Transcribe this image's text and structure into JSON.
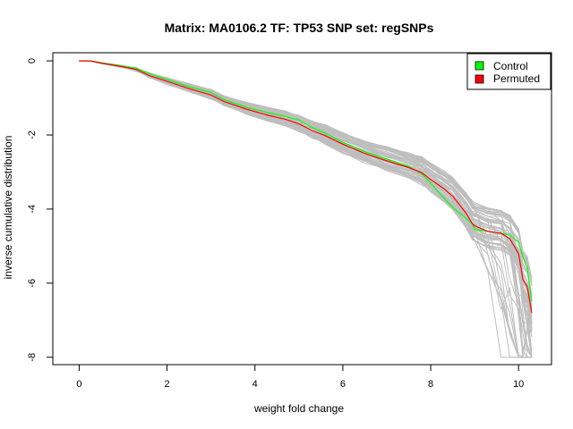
{
  "chart_data": {
    "type": "line",
    "title": "Matrix: MA0106.2 TF: TP53 SNP set: regSNPs",
    "xlabel": "weight fold change",
    "ylabel": "inverse cumulative distribution",
    "xlim": [
      -0.6,
      10.75
    ],
    "ylim": [
      -8.2,
      0.22
    ],
    "x_ticks": [
      0,
      2,
      4,
      6,
      8,
      10
    ],
    "y_ticks": [
      0,
      -2,
      -4,
      -6,
      -8
    ],
    "grid": false,
    "legend": {
      "position": "top-right",
      "entries": [
        {
          "label": "Control",
          "color": "#00ff00"
        },
        {
          "label": "Permuted",
          "color": "#ff0000"
        }
      ]
    },
    "colors": {
      "control": "#00ff00",
      "permuted": "#ff0000",
      "background_series": "#bebebe"
    },
    "series": [
      {
        "name": "Control",
        "color": "#00ff00",
        "x": [
          0,
          0.25,
          0.5,
          0.9,
          1.3,
          1.6,
          2.0,
          2.5,
          3.0,
          3.3,
          3.8,
          4.3,
          4.7,
          5.0,
          5.3,
          5.6,
          6.0,
          6.5,
          7.0,
          7.5,
          7.8,
          8.0,
          8.3,
          8.5,
          8.8,
          8.95,
          9.0,
          9.3,
          9.6,
          9.8,
          10.0,
          10.1,
          10.2,
          10.3
        ],
        "y": [
          0,
          0,
          -0.05,
          -0.12,
          -0.2,
          -0.35,
          -0.5,
          -0.7,
          -0.85,
          -1.05,
          -1.25,
          -1.4,
          -1.5,
          -1.6,
          -1.8,
          -1.95,
          -2.2,
          -2.45,
          -2.65,
          -2.85,
          -3.05,
          -3.3,
          -3.7,
          -3.95,
          -4.25,
          -4.4,
          -4.55,
          -4.6,
          -4.65,
          -4.7,
          -4.9,
          -5.3,
          -5.6,
          -6.5
        ]
      },
      {
        "name": "Permuted",
        "color": "#ff0000",
        "x": [
          0,
          0.25,
          0.5,
          0.9,
          1.3,
          1.6,
          2.0,
          2.5,
          3.0,
          3.3,
          3.8,
          4.3,
          4.7,
          5.0,
          5.3,
          5.6,
          6.0,
          6.5,
          7.0,
          7.5,
          7.8,
          8.0,
          8.3,
          8.5,
          8.8,
          8.95,
          9.0,
          9.3,
          9.6,
          9.8,
          10.0,
          10.1,
          10.2,
          10.3
        ],
        "y": [
          0,
          0,
          -0.06,
          -0.14,
          -0.23,
          -0.4,
          -0.55,
          -0.75,
          -0.92,
          -1.1,
          -1.3,
          -1.47,
          -1.58,
          -1.7,
          -1.88,
          -2.02,
          -2.25,
          -2.5,
          -2.7,
          -2.88,
          -3.02,
          -3.2,
          -3.45,
          -3.65,
          -4.1,
          -4.4,
          -4.45,
          -4.6,
          -4.65,
          -4.8,
          -5.2,
          -5.9,
          -6.1,
          -6.8
        ]
      }
    ],
    "background_series": {
      "name": "",
      "count": 60,
      "color": "#bebebe",
      "x_range": [
        0,
        10.35
      ],
      "y_min": -8,
      "description_visible": false
    }
  }
}
